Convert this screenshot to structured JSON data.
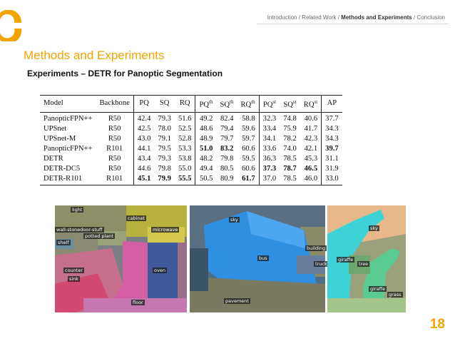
{
  "breadcrumb": {
    "item1": "Introduction",
    "sep1": " / ",
    "item2": "Related Work",
    "sep2": " / ",
    "item3": "Methods and Experiments",
    "sep3": " / ",
    "item4": "Conclusion"
  },
  "section_title": "Methods and Experiments",
  "subtitle": "Experiments – DETR for Panoptic Segmentation",
  "table": {
    "headers": {
      "model": "Model",
      "backbone": "Backbone",
      "pq": "PQ",
      "sq": "SQ",
      "rq": "RQ",
      "pq_th": "PQ",
      "pq_th_sup": "th",
      "sq_th": "SQ",
      "sq_th_sup": "th",
      "rq_th": "RQ",
      "rq_th_sup": "th",
      "pq_st": "PQ",
      "pq_st_sup": "st",
      "sq_st": "SQ",
      "sq_st_sup": "st",
      "rq_st": "RQ",
      "rq_st_sup": "st",
      "ap": "AP"
    },
    "rows": [
      {
        "model": "PanopticFPN++",
        "backbone": "R50",
        "pq": "42.4",
        "sq": "79.3",
        "rq": "51.6",
        "pq_th": "49.2",
        "sq_th": "82.4",
        "rq_th": "58.8",
        "pq_st": "32.3",
        "sq_st": "74.8",
        "rq_st": "40.6",
        "ap": "37.7"
      },
      {
        "model": "UPSnet",
        "backbone": "R50",
        "pq": "42.5",
        "sq": "78.0",
        "rq": "52.5",
        "pq_th": "48.6",
        "sq_th": "79.4",
        "rq_th": "59.6",
        "pq_st": "33.4",
        "sq_st": "75.9",
        "rq_st": "41.7",
        "ap": "34.3"
      },
      {
        "model": "UPSnet-M",
        "backbone": "R50",
        "pq": "43.0",
        "sq": "79.1",
        "rq": "52.8",
        "pq_th": "48.9",
        "sq_th": "79.7",
        "rq_th": "59.7",
        "pq_st": "34.1",
        "sq_st": "78.2",
        "rq_st": "42.3",
        "ap": "34.3"
      },
      {
        "model": "PanopticFPN++",
        "backbone": "R101",
        "pq": "44.1",
        "sq": "79.5",
        "rq": "53.3",
        "pq_th": "51.0",
        "sq_th": "83.2",
        "rq_th": "60.6",
        "pq_st": "33.6",
        "sq_st": "74.0",
        "rq_st": "42.1",
        "ap": "39.7"
      },
      {
        "model": "DETR",
        "backbone": "R50",
        "pq": "43.4",
        "sq": "79.3",
        "rq": "53.8",
        "pq_th": "48.2",
        "sq_th": "79.8",
        "rq_th": "59.5",
        "pq_st": "36.3",
        "sq_st": "78.5",
        "rq_st": "45.3",
        "ap": "31.1"
      },
      {
        "model": "DETR-DC5",
        "backbone": "R50",
        "pq": "44.6",
        "sq": "79.8",
        "rq": "55.0",
        "pq_th": "49.4",
        "sq_th": "80.5",
        "rq_th": "60.6",
        "pq_st": "37.3",
        "sq_st": "78.7",
        "rq_st": "46.5",
        "ap": "31.9"
      },
      {
        "model": "DETR-R101",
        "backbone": "R101",
        "pq": "45.1",
        "sq": "79.9",
        "rq": "55.5",
        "pq_th": "50.5",
        "sq_th": "80.9",
        "rq_th": "61.7",
        "pq_st": "37.0",
        "sq_st": "78.5",
        "rq_st": "46.0",
        "ap": "33.0"
      }
    ]
  },
  "images": {
    "kitchen_labels": {
      "light": "light",
      "cabinet": "cabinet",
      "wall_stone": "wall-stonedoor-stuff",
      "potted_plant": "potted plant",
      "microwave": "microwave",
      "shelf": "shelf",
      "counter": "counter",
      "oven": "oven",
      "sink": "sink",
      "floor": "floor"
    },
    "bus_labels": {
      "sky": "sky",
      "building": "building",
      "bus": "bus",
      "truck": "truck",
      "pavement": "pavement"
    },
    "giraffe_labels": {
      "sky": "sky",
      "giraffe1": "giraffe",
      "tree": "tree",
      "giraffe2": "giraffe",
      "grass": "grass"
    }
  },
  "page_number": "18",
  "colors": {
    "accent": "#f0a400"
  }
}
